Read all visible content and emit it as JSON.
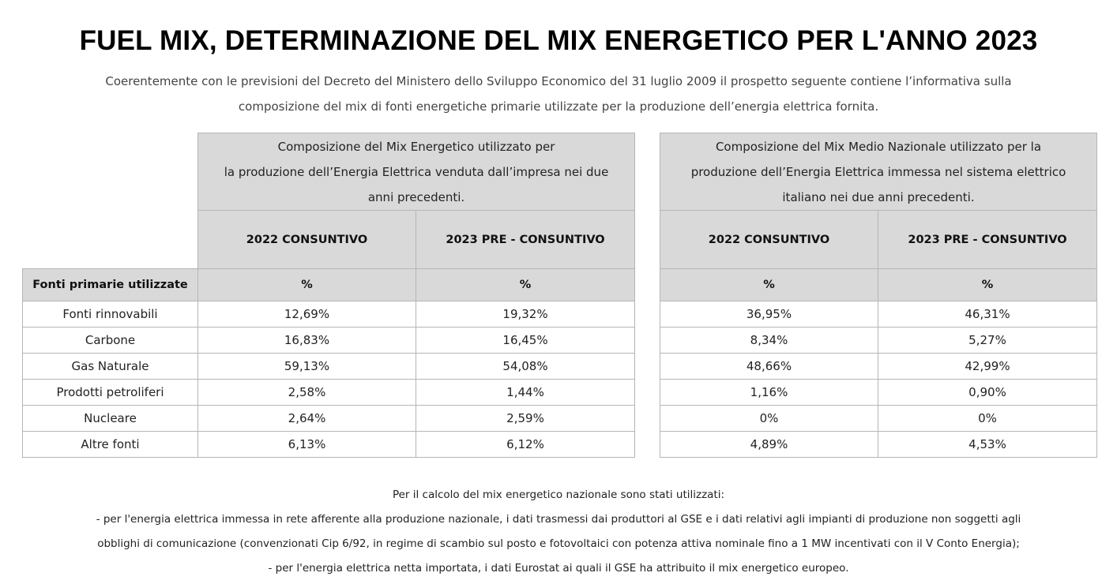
{
  "page_title": "FUEL MIX, DETERMINAZIONE DEL MIX ENERGETICO PER L'ANNO 2023",
  "intro_line_1": "Coerentemente con le previsioni del Decreto del Ministero dello Sviluppo Economico del 31 luglio 2009 il prospetto seguente contiene l’informativa sulla",
  "intro_line_2": "composizione del mix di fonti energetiche primarie utilizzate per la produzione dell’energia elettrica fornita.",
  "left_table": {
    "description_lines": [
      "Composizione del Mix Energetico utilizzato per",
      "la produzione dell’Energia Elettrica venduta dall’impresa nei due",
      "anni precedenti."
    ],
    "year_headers": [
      "2022 CONSUNTIVO",
      "2023 PRE - CONSUNTIVO"
    ],
    "row_label_header": "Fonti primarie utilizzate",
    "unit_headers": [
      "%",
      "%"
    ],
    "rows": [
      {
        "label": "Fonti rinnovabili",
        "values": [
          "12,69%",
          "19,32%"
        ]
      },
      {
        "label": "Carbone",
        "values": [
          "16,83%",
          "16,45%"
        ]
      },
      {
        "label": "Gas Naturale",
        "values": [
          "59,13%",
          "54,08%"
        ]
      },
      {
        "label": "Prodotti petroliferi",
        "values": [
          "2,58%",
          "1,44%"
        ]
      },
      {
        "label": "Nucleare",
        "values": [
          "2,64%",
          "2,59%"
        ]
      },
      {
        "label": "Altre fonti",
        "values": [
          "6,13%",
          "6,12%"
        ]
      }
    ]
  },
  "right_table": {
    "description_lines": [
      "Composizione del Mix Medio Nazionale utilizzato per la",
      "produzione dell’Energia Elettrica immessa nel sistema elettrico",
      "italiano nei due anni precedenti."
    ],
    "year_headers": [
      "2022 CONSUNTIVO",
      "2023 PRE - CONSUNTIVO"
    ],
    "unit_headers": [
      "%",
      "%"
    ],
    "rows": [
      {
        "values": [
          "36,95%",
          "46,31%"
        ]
      },
      {
        "values": [
          "8,34%",
          "5,27%"
        ]
      },
      {
        "values": [
          "48,66%",
          "42,99%"
        ]
      },
      {
        "values": [
          "1,16%",
          "0,90%"
        ]
      },
      {
        "values": [
          "0%",
          "0%"
        ]
      },
      {
        "values": [
          "4,89%",
          "4,53%"
        ]
      }
    ]
  },
  "footer": {
    "line_1": "Per il calcolo del mix energetico nazionale sono stati utilizzati:",
    "line_2": "- per l'energia elettrica immessa in rete afferente alla produzione nazionale, i dati trasmessi dai produttori al GSE e i dati relativi agli impianti di produzione non soggetti agli",
    "line_3": "obblighi di comunicazione (convenzionati Cip 6/92, in regime di scambio sul posto e fotovoltaici con potenza attiva nominale fino a 1 MW incentivati con il V Conto Energia);",
    "line_4": "- per l'energia elettrica netta importata, i dati Eurostat ai quali il GSE ha attribuito il mix energetico europeo."
  }
}
